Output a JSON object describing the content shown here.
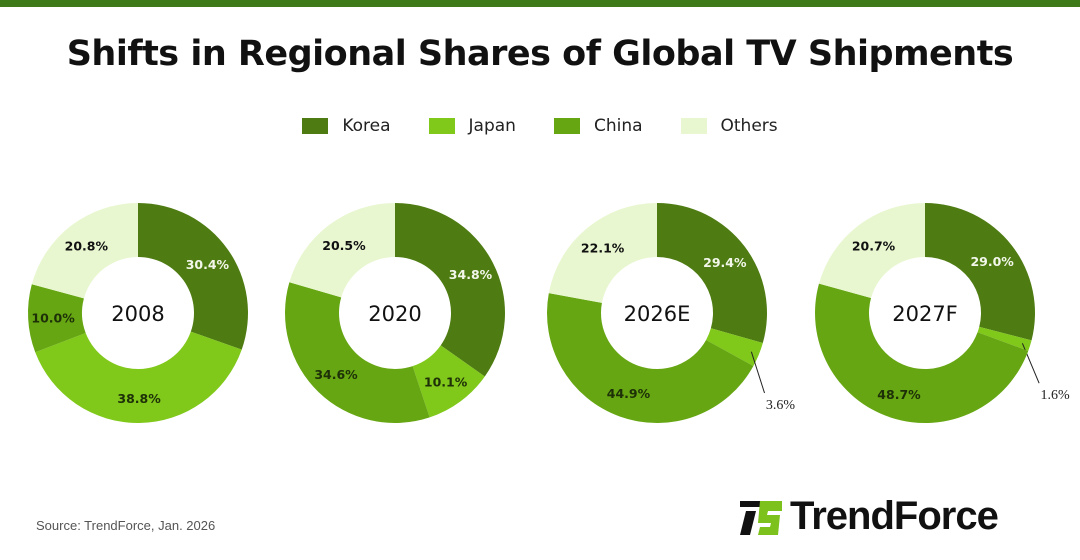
{
  "chart_data": {
    "type": "pie",
    "title": "Shifts in Regional Shares of Global TV Shipments",
    "legend": {
      "placement": "top",
      "entries": [
        {
          "name": "Korea",
          "color": "#4e7c12"
        },
        {
          "name": "Japan",
          "color": "#80c81a"
        },
        {
          "name": "China",
          "color": "#66a612"
        },
        {
          "name": "Others",
          "color": "#e8f7d0"
        }
      ]
    },
    "donut": true,
    "categories": [
      "Korea",
      "Japan",
      "China",
      "Others"
    ],
    "charts": [
      {
        "label": "2008",
        "values": [
          30.4,
          38.8,
          10.0,
          20.8
        ],
        "labels": [
          "30.4%",
          "38.8%",
          "10.0%",
          "20.8%"
        ]
      },
      {
        "label": "2020",
        "values": [
          34.8,
          10.1,
          34.6,
          20.5
        ],
        "labels": [
          "34.8%",
          "10.1%",
          "34.6%",
          "20.5%"
        ]
      },
      {
        "label": "2026E",
        "values": [
          29.4,
          3.6,
          44.9,
          22.1
        ],
        "labels": [
          "29.4%",
          "3.6%",
          "44.9%",
          "22.1%"
        ]
      },
      {
        "label": "2027F",
        "values": [
          29.0,
          1.6,
          48.7,
          20.7
        ],
        "labels": [
          "29.0%",
          "1.6%",
          "48.7%",
          "20.7%"
        ]
      }
    ]
  },
  "source": "Source: TrendForce, Jan. 2026",
  "logo": {
    "text": "TrendForce"
  }
}
